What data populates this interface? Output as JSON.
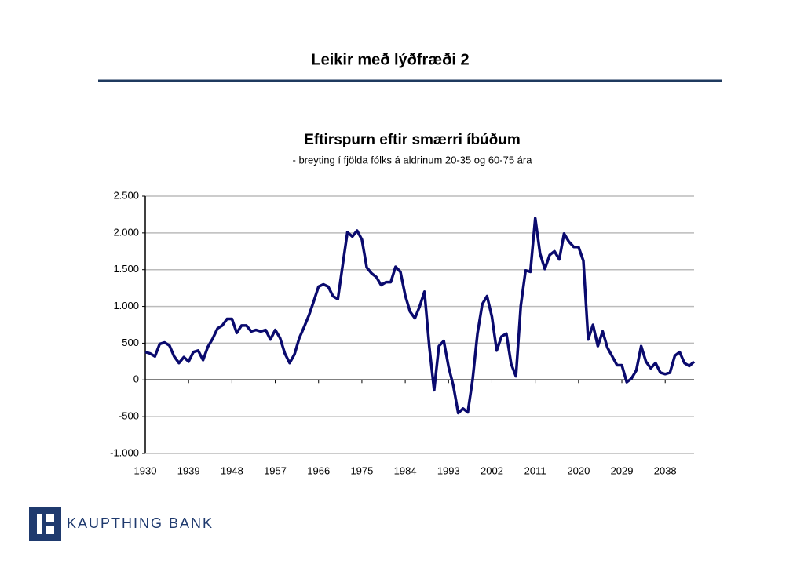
{
  "header": {
    "title": "Leikir með lýðfræði 2"
  },
  "brand": "KAUPTHING BANK",
  "chart_data": {
    "type": "line",
    "title": "Eftirspurn eftir smærri íbúðum",
    "subtitle": "- breyting í fjölda fólks á aldrinum 20-35 og 60-75 ára",
    "x": [
      1930,
      1931,
      1932,
      1933,
      1934,
      1935,
      1936,
      1937,
      1938,
      1939,
      1940,
      1941,
      1942,
      1943,
      1944,
      1945,
      1946,
      1947,
      1948,
      1949,
      1950,
      1951,
      1952,
      1953,
      1954,
      1955,
      1956,
      1957,
      1958,
      1959,
      1960,
      1961,
      1962,
      1963,
      1964,
      1965,
      1966,
      1967,
      1968,
      1969,
      1970,
      1971,
      1972,
      1973,
      1974,
      1975,
      1976,
      1977,
      1978,
      1979,
      1980,
      1981,
      1982,
      1983,
      1984,
      1985,
      1986,
      1987,
      1988,
      1989,
      1990,
      1991,
      1992,
      1993,
      1994,
      1995,
      1996,
      1997,
      1998,
      1999,
      2000,
      2001,
      2002,
      2003,
      2004,
      2005,
      2006,
      2007,
      2008,
      2009,
      2010,
      2011,
      2012,
      2013,
      2014,
      2015,
      2016,
      2017,
      2018,
      2019,
      2020,
      2021,
      2022,
      2023,
      2024,
      2025,
      2026,
      2027,
      2028,
      2029,
      2030,
      2031,
      2032,
      2033,
      2034,
      2035,
      2036,
      2037,
      2038,
      2039,
      2040,
      2041,
      2042,
      2043,
      2044
    ],
    "series": [
      {
        "name": "Eftirspurn",
        "color": "#0a0a6e",
        "values": [
          380,
          360,
          320,
          490,
          510,
          470,
          320,
          230,
          310,
          250,
          380,
          400,
          270,
          450,
          560,
          700,
          740,
          830,
          830,
          640,
          740,
          740,
          660,
          680,
          660,
          680,
          550,
          680,
          570,
          360,
          230,
          350,
          570,
          720,
          880,
          1070,
          1270,
          1300,
          1270,
          1140,
          1100,
          1560,
          2010,
          1950,
          2030,
          1910,
          1530,
          1450,
          1400,
          1290,
          1330,
          1330,
          1540,
          1470,
          1150,
          930,
          840,
          1000,
          1200,
          450,
          -140,
          460,
          530,
          180,
          -80,
          -450,
          -390,
          -440,
          0,
          630,
          1030,
          1140,
          860,
          400,
          590,
          630,
          220,
          50,
          1010,
          1490,
          1470,
          2200,
          1720,
          1510,
          1700,
          1750,
          1640,
          1990,
          1880,
          1810,
          1810,
          1620,
          550,
          750,
          460,
          660,
          440,
          320,
          200,
          200,
          -30,
          20,
          130,
          460,
          250,
          160,
          230,
          100,
          80,
          100,
          330,
          380,
          230,
          190,
          250
        ]
      }
    ],
    "xlim": [
      1930,
      2044
    ],
    "xticks": [
      1930,
      1939,
      1948,
      1957,
      1966,
      1975,
      1984,
      1993,
      2002,
      2011,
      2020,
      2029,
      2038
    ],
    "ylim": [
      -1000,
      2500
    ],
    "yticks": [
      {
        "value": 2500,
        "label": "2.500"
      },
      {
        "value": 2000,
        "label": "2.000"
      },
      {
        "value": 1500,
        "label": "1.500"
      },
      {
        "value": 1000,
        "label": "1.000"
      },
      500,
      0,
      -500,
      {
        "value": -1000,
        "label": "-1.000"
      }
    ],
    "grid": true
  }
}
